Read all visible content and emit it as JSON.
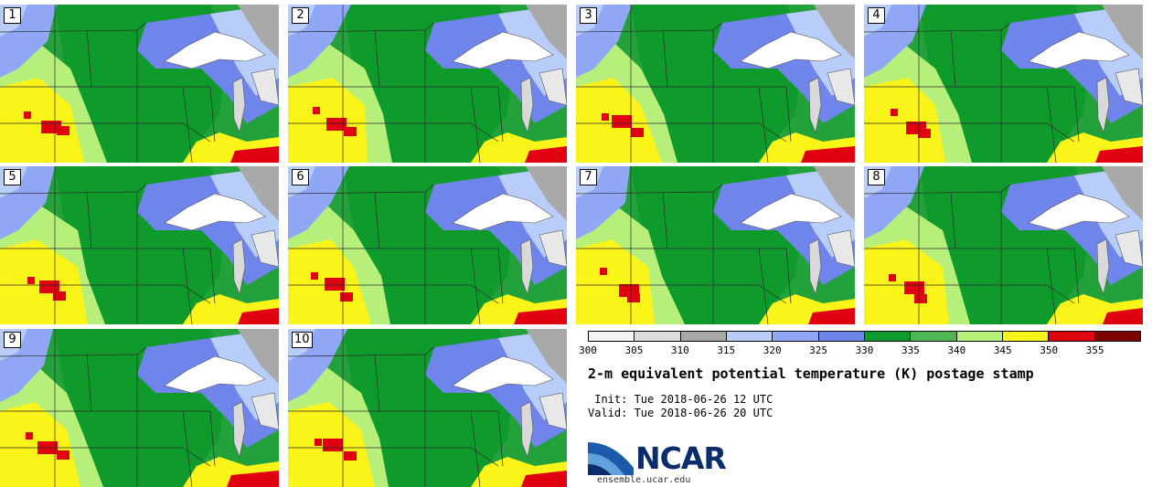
{
  "stamps": [
    "1",
    "2",
    "3",
    "4",
    "5",
    "6",
    "7",
    "8",
    "9",
    "10"
  ],
  "colorbar": {
    "tick_labels": [
      "300",
      "305",
      "310",
      "315",
      "320",
      "325",
      "330",
      "335",
      "340",
      "345",
      "350",
      "355"
    ],
    "colors": [
      "#f4f4f4",
      "#dedede",
      "#a9a9a9",
      "#b8cdfa",
      "#8fa7f5",
      "#6f85ec",
      "#0f9a2c",
      "#4db74f",
      "#b6f07a",
      "#fbf418",
      "#e10010",
      "#7e0000"
    ]
  },
  "title": "2-m equivalent potential temperature (K) postage stamp",
  "init_line": " Init: Tue 2018-06-26 12 UTC",
  "valid_line": "Valid: Tue 2018-06-26 20 UTC",
  "logo": {
    "text": "NCAR",
    "url": "ensemble.ucar.edu"
  }
}
